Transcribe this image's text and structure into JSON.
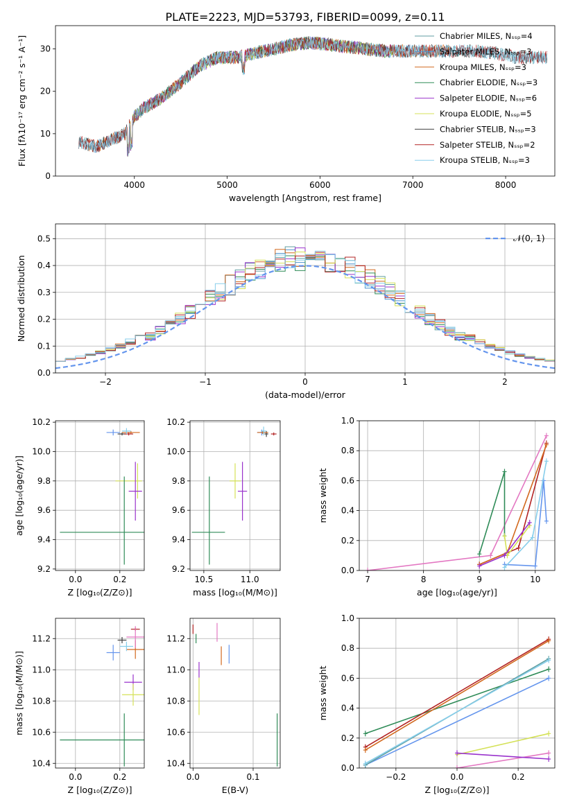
{
  "figure_title": "PLATE=2223, MJD=53793, FIBERID=0099, z=0.11",
  "chart_data": [
    {
      "id": "spectrum",
      "type": "line",
      "xlabel": "wavelength [Angstrom, rest frame]",
      "ylabel": "Flux [fλ10⁻¹⁷ erg cm⁻² s⁻¹ A⁻¹]",
      "xlim": [
        3150,
        8530
      ],
      "ylim": [
        0,
        35.5
      ],
      "xticks": [
        4000,
        5000,
        6000,
        7000,
        8000
      ],
      "yticks": [
        0,
        10,
        20,
        30
      ],
      "grid": false,
      "legend": "upper-right",
      "continuum": {
        "x": [
          3400,
          3600,
          3800,
          3900,
          4000,
          4100,
          4300,
          4500,
          4700,
          4900,
          5100,
          5300,
          5500,
          5700,
          5900,
          6100,
          6300,
          6500,
          6700,
          6900,
          7100,
          7300,
          7500,
          7700,
          7900,
          8100
        ],
        "y": [
          8,
          7,
          9,
          10,
          14,
          16,
          18.5,
          22,
          26,
          28,
          28,
          29,
          30,
          31,
          31.5,
          31,
          30.5,
          30,
          29.5,
          29.5,
          29.5,
          29.5,
          29.5,
          29.5,
          29,
          28
        ]
      },
      "series": [
        {
          "name": "Chabrier MILES, Nₛₛₚ=4",
          "color": "#5f9ea0",
          "x_range": [
            3400,
            8450
          ]
        },
        {
          "name": "Salpeter MILES, Nₛₛₚ=3",
          "color": "#4f94cd",
          "x_range": [
            3500,
            7400
          ]
        },
        {
          "name": "Kroupa MILES, Nₛₛₚ=3",
          "color": "#d2691e",
          "x_range": [
            3500,
            7400
          ]
        },
        {
          "name": "Chabrier ELODIE, Nₛₛₚ=3",
          "color": "#2e8b57",
          "x_range": [
            3900,
            6800
          ]
        },
        {
          "name": "Salpeter ELODIE, Nₛₛₚ=6",
          "color": "#9932cc",
          "x_range": [
            3900,
            6800
          ]
        },
        {
          "name": "Kroupa ELODIE, Nₛₛₚ=5",
          "color": "#d4e157",
          "x_range": [
            3900,
            6800
          ]
        },
        {
          "name": "Chabrier STELIB, Nₛₛₚ=3",
          "color": "#404040",
          "x_range": [
            3400,
            8450
          ]
        },
        {
          "name": "Salpeter STELIB, Nₛₛₚ=2",
          "color": "#b22222",
          "x_range": [
            3400,
            8450
          ]
        },
        {
          "name": "Kroupa STELIB, Nₛₛₚ=3",
          "color": "#87ceeb",
          "x_range": [
            3400,
            8450
          ]
        }
      ]
    },
    {
      "id": "residuals",
      "type": "bar",
      "xlabel": "(data-model)/error",
      "ylabel": "Normed distribution",
      "xlim": [
        -2.5,
        2.5
      ],
      "ylim": [
        0,
        0.555
      ],
      "xticks": [
        -2,
        -1,
        0,
        1,
        2
      ],
      "yticks": [
        0.0,
        0.1,
        0.2,
        0.3,
        0.4,
        0.5
      ],
      "grid": true,
      "legend": "upper-right",
      "gaussian_label": "𝒩(0, 1)",
      "gaussian_color": "#6495ed",
      "bin_width": 0.1,
      "series_colors": [
        "#5f9ea0",
        "#4f94cd",
        "#d2691e",
        "#2e8b57",
        "#9932cc",
        "#d4e157",
        "#b22222",
        "#87ceeb"
      ]
    },
    {
      "id": "age_vs_z",
      "type": "scatter",
      "xlabel": "Z [log₁₀(Z/Z⊙)]",
      "ylabel": "age  [log₁₀(age/yr)]",
      "xlim": [
        -0.09,
        0.31
      ],
      "ylim": [
        9.19,
        10.21
      ],
      "xticks": [
        0.0,
        0.2
      ],
      "yticks": [
        9.2,
        9.4,
        9.6,
        9.8,
        10.0,
        10.2
      ],
      "grid": true,
      "points": [
        {
          "x": 0.17,
          "y": 10.13,
          "xerr": 0.03,
          "yerr": 0.02,
          "color": "#6495ed"
        },
        {
          "x": 0.21,
          "y": 10.12,
          "xerr": 0.02,
          "yerr": 0.01,
          "color": "#404040"
        },
        {
          "x": 0.25,
          "y": 10.13,
          "xerr": 0.04,
          "yerr": 0.01,
          "color": "#d2691e"
        },
        {
          "x": 0.24,
          "y": 10.12,
          "xerr": 0.02,
          "yerr": 0.01,
          "color": "#b22222"
        },
        {
          "x": 0.23,
          "y": 10.14,
          "xerr": 0.02,
          "yerr": 0.02,
          "color": "#87ceeb"
        },
        {
          "x": 0.24,
          "y": 9.8,
          "xerr": 0.06,
          "yerr": 0.0,
          "color": "#d4e157"
        },
        {
          "x": 0.28,
          "y": 9.8,
          "xerr": 0.0,
          "yerr": 0.12,
          "color": "#d4e157"
        },
        {
          "x": 0.27,
          "y": 9.73,
          "xerr": 0.03,
          "yerr": 0.2,
          "color": "#9932cc"
        },
        {
          "x": 0.21,
          "y": 9.45,
          "xerr": 0.28,
          "yerr": 0.0,
          "color": "#2e8b57"
        },
        {
          "x": 0.22,
          "y": 9.53,
          "xerr": 0.0,
          "yerr": 0.3,
          "color": "#2e8b57"
        }
      ]
    },
    {
      "id": "age_vs_mass",
      "type": "scatter",
      "xlabel": "mass [log₁₀(M/M⊙)]",
      "ylabel": "",
      "xlim": [
        10.35,
        11.33
      ],
      "ylim": [
        9.19,
        10.21
      ],
      "xticks": [
        10.5,
        11.0
      ],
      "yticks": [
        9.2,
        9.4,
        9.6,
        9.8,
        10.0,
        10.2
      ],
      "grid": true,
      "points": [
        {
          "x": 11.13,
          "y": 10.13,
          "xerr": 0.05,
          "yerr": 0.02,
          "color": "#6495ed"
        },
        {
          "x": 11.18,
          "y": 10.12,
          "xerr": 0.02,
          "yerr": 0.02,
          "color": "#404040"
        },
        {
          "x": 11.14,
          "y": 10.13,
          "xerr": 0.06,
          "yerr": 0.01,
          "color": "#d2691e"
        },
        {
          "x": 11.26,
          "y": 10.12,
          "xerr": 0.03,
          "yerr": 0.01,
          "color": "#b22222"
        },
        {
          "x": 11.15,
          "y": 10.14,
          "xerr": 0.03,
          "yerr": 0.03,
          "color": "#87ceeb"
        },
        {
          "x": 10.84,
          "y": 9.8,
          "xerr": 0.06,
          "yerr": 0.12,
          "color": "#d4e157"
        },
        {
          "x": 10.92,
          "y": 9.73,
          "xerr": 0.05,
          "yerr": 0.2,
          "color": "#9932cc"
        },
        {
          "x": 10.55,
          "y": 9.45,
          "xerr": 0.18,
          "yerr": 0.0,
          "color": "#2e8b57"
        },
        {
          "x": 10.56,
          "y": 9.53,
          "xerr": 0.0,
          "yerr": 0.3,
          "color": "#2e8b57"
        }
      ]
    },
    {
      "id": "weight_vs_age",
      "type": "line",
      "xlabel": "age  [log₁₀(age/yr)]",
      "ylabel": "mass weight",
      "xlim": [
        6.85,
        10.35
      ],
      "ylim": [
        0,
        1.0
      ],
      "xticks": [
        7,
        8,
        9,
        10
      ],
      "yticks": [
        0.0,
        0.2,
        0.4,
        0.6,
        0.8,
        1.0
      ],
      "grid": true,
      "series": [
        {
          "color": "#e377c2",
          "x": [
            7.0,
            9.2,
            10.2
          ],
          "y": [
            0.0,
            0.1,
            0.9
          ]
        },
        {
          "color": "#2e8b57",
          "x": [
            9.0,
            9.45,
            9.45
          ],
          "y": [
            0.11,
            0.66,
            0.23
          ]
        },
        {
          "color": "#b22222",
          "x": [
            9.0,
            9.7,
            10.2
          ],
          "y": [
            0.04,
            0.15,
            0.85
          ]
        },
        {
          "color": "#d2691e",
          "x": [
            9.0,
            9.5,
            10.2
          ],
          "y": [
            0.04,
            0.12,
            0.84
          ]
        },
        {
          "color": "#6495ed",
          "x": [
            9.45,
            10.0,
            10.15,
            10.2
          ],
          "y": [
            0.04,
            0.03,
            0.6,
            0.33
          ]
        },
        {
          "color": "#87ceeb",
          "x": [
            9.45,
            9.95,
            10.2
          ],
          "y": [
            0.02,
            0.22,
            0.73
          ]
        },
        {
          "color": "#d4e157",
          "x": [
            9.45,
            9.5,
            9.9
          ],
          "y": [
            0.23,
            0.1,
            0.3
          ]
        },
        {
          "color": "#9932cc",
          "x": [
            9.0,
            9.45,
            9.9
          ],
          "y": [
            0.03,
            0.1,
            0.32
          ]
        }
      ]
    },
    {
      "id": "mass_vs_z",
      "type": "scatter",
      "xlabel": "Z [log₁₀(Z/Z⊙)]",
      "ylabel": "mass [log₁₀(M/M⊙)]",
      "xlim": [
        -0.09,
        0.31
      ],
      "ylim": [
        10.37,
        11.33
      ],
      "xticks": [
        0.0,
        0.2
      ],
      "yticks": [
        10.4,
        10.6,
        10.8,
        11.0,
        11.2
      ],
      "grid": true,
      "points": [
        {
          "x": 0.17,
          "y": 11.11,
          "xerr": 0.03,
          "yerr": 0.05,
          "color": "#6495ed"
        },
        {
          "x": 0.21,
          "y": 11.19,
          "xerr": 0.02,
          "yerr": 0.02,
          "color": "#404040"
        },
        {
          "x": 0.27,
          "y": 11.13,
          "xerr": 0.04,
          "yerr": 0.06,
          "color": "#d2691e"
        },
        {
          "x": 0.27,
          "y": 11.26,
          "xerr": 0.02,
          "yerr": 0.01,
          "color": "#b22222"
        },
        {
          "x": 0.23,
          "y": 11.15,
          "xerr": 0.03,
          "yerr": 0.03,
          "color": "#87ceeb"
        },
        {
          "x": 0.27,
          "y": 11.21,
          "xerr": 0.04,
          "yerr": 0.07,
          "color": "#e377c2"
        },
        {
          "x": 0.26,
          "y": 10.92,
          "xerr": 0.04,
          "yerr": 0.05,
          "color": "#9932cc"
        },
        {
          "x": 0.26,
          "y": 10.84,
          "xerr": 0.05,
          "yerr": 0.07,
          "color": "#d4e157"
        },
        {
          "x": 0.21,
          "y": 10.55,
          "xerr": 0.28,
          "yerr": 0.0,
          "color": "#2e8b57"
        },
        {
          "x": 0.22,
          "y": 10.55,
          "xerr": 0.0,
          "yerr": 0.17,
          "color": "#2e8b57"
        }
      ]
    },
    {
      "id": "mass_vs_ebv",
      "type": "scatter",
      "xlabel": "E(B-V)",
      "ylabel": "",
      "xlim": [
        -0.005,
        0.145
      ],
      "ylim": [
        10.37,
        11.33
      ],
      "xticks": [
        0.0,
        0.1
      ],
      "yticks": [
        10.4,
        10.6,
        10.8,
        11.0,
        11.2
      ],
      "grid": true,
      "points": [
        {
          "x": 0.0,
          "y": 11.26,
          "xerr": 0,
          "yerr": 0.03,
          "color": "#b22222"
        },
        {
          "x": 0.005,
          "y": 11.2,
          "xerr": 0,
          "yerr": 0.03,
          "color": "#2e8b57"
        },
        {
          "x": 0.04,
          "y": 11.24,
          "xerr": 0,
          "yerr": 0.06,
          "color": "#e377c2"
        },
        {
          "x": 0.047,
          "y": 11.09,
          "xerr": 0,
          "yerr": 0.06,
          "color": "#d2691e"
        },
        {
          "x": 0.06,
          "y": 11.1,
          "xerr": 0,
          "yerr": 0.06,
          "color": "#6495ed"
        },
        {
          "x": 0.01,
          "y": 11.0,
          "xerr": 0,
          "yerr": 0.05,
          "color": "#9932cc"
        },
        {
          "x": 0.01,
          "y": 10.83,
          "xerr": 0,
          "yerr": 0.12,
          "color": "#d4e157"
        },
        {
          "x": 0.14,
          "y": 10.55,
          "xerr": 0,
          "yerr": 0.17,
          "color": "#2e8b57"
        }
      ]
    },
    {
      "id": "weight_vs_z",
      "type": "line",
      "xlabel": "Z [log₁₀(Z/Z⊙)]",
      "ylabel": "mass weight",
      "xlim": [
        -0.32,
        0.32
      ],
      "ylim": [
        0,
        1.0
      ],
      "xticks": [
        -0.2,
        0.0,
        0.2
      ],
      "yticks": [
        0.0,
        0.2,
        0.4,
        0.6,
        0.8,
        1.0
      ],
      "grid": true,
      "series": [
        {
          "color": "#e377c2",
          "x": [
            0.0,
            0.3
          ],
          "y": [
            0.0,
            0.1
          ]
        },
        {
          "color": "#2e8b57",
          "x": [
            -0.3,
            0.3
          ],
          "y": [
            0.23,
            0.66
          ]
        },
        {
          "color": "#b22222",
          "x": [
            -0.3,
            0.3
          ],
          "y": [
            0.14,
            0.86
          ]
        },
        {
          "color": "#d2691e",
          "x": [
            -0.3,
            0.3
          ],
          "y": [
            0.12,
            0.85
          ]
        },
        {
          "color": "#6495ed",
          "x": [
            -0.3,
            0.3
          ],
          "y": [
            0.02,
            0.6
          ]
        },
        {
          "color": "#5f9ea0",
          "x": [
            -0.3,
            0.3
          ],
          "y": [
            0.02,
            0.73
          ]
        },
        {
          "color": "#87ceeb",
          "x": [
            -0.3,
            0.3
          ],
          "y": [
            0.03,
            0.72
          ]
        },
        {
          "color": "#d4e157",
          "x": [
            0.0,
            0.3
          ],
          "y": [
            0.09,
            0.23
          ]
        },
        {
          "color": "#9932cc",
          "x": [
            0.0,
            0.3
          ],
          "y": [
            0.1,
            0.06
          ]
        }
      ]
    }
  ]
}
